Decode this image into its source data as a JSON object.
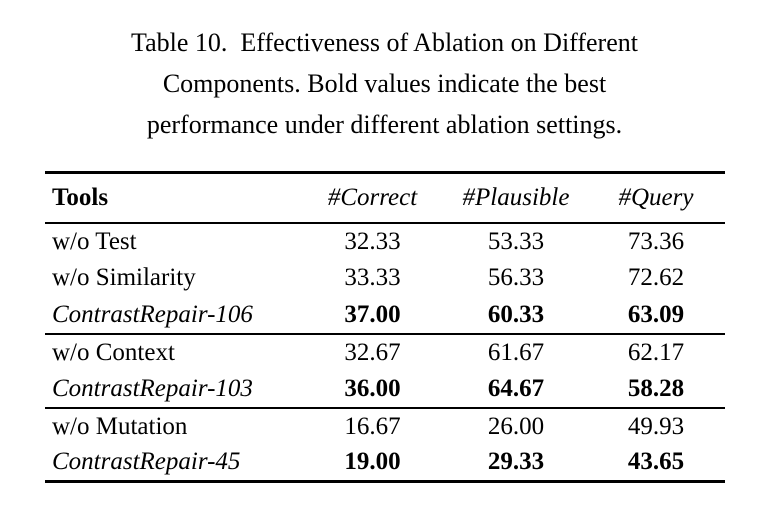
{
  "caption": {
    "lines": [
      "Table 10.  Effectiveness of Ablation on Different",
      "Components. Bold values indicate the best",
      "performance under different ablation settings."
    ]
  },
  "table": {
    "headers": [
      "Tools",
      "#Correct",
      "#Plausible",
      "#Query"
    ],
    "groups": [
      {
        "rows": [
          {
            "tool": "w/o Test",
            "italic": false,
            "bold": false,
            "values": [
              "32.33",
              "53.33",
              "73.36"
            ]
          },
          {
            "tool": "w/o Similarity",
            "italic": false,
            "bold": false,
            "values": [
              "33.33",
              "56.33",
              "72.62"
            ]
          },
          {
            "tool": "ContrastRepair-106",
            "italic": true,
            "bold": true,
            "values": [
              "37.00",
              "60.33",
              "63.09"
            ]
          }
        ]
      },
      {
        "rows": [
          {
            "tool": "w/o Context",
            "italic": false,
            "bold": false,
            "values": [
              "32.67",
              "61.67",
              "62.17"
            ]
          },
          {
            "tool": "ContrastRepair-103",
            "italic": true,
            "bold": true,
            "values": [
              "36.00",
              "64.67",
              "58.28"
            ]
          }
        ]
      },
      {
        "rows": [
          {
            "tool": "w/o Mutation",
            "italic": false,
            "bold": false,
            "values": [
              "16.67",
              "26.00",
              "49.93"
            ]
          },
          {
            "tool": "ContrastRepair-45",
            "italic": true,
            "bold": true,
            "values": [
              "19.00",
              "29.33",
              "43.65"
            ]
          }
        ]
      }
    ]
  },
  "colors": {
    "text": "#000000",
    "rule": "#000000",
    "background": "#ffffff"
  }
}
